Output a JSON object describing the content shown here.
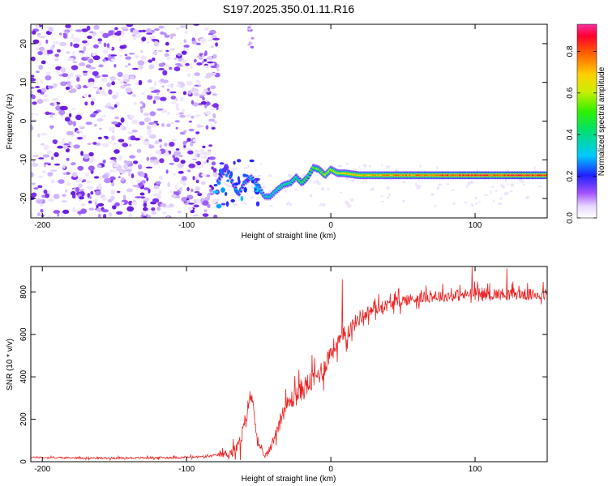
{
  "figure_title": "S197.2025.350.01.11.R16",
  "chart_data": [
    {
      "type": "heatmap",
      "name": "spectrogram",
      "title": "S197.2025.350.01.11.R16",
      "xlabel": "Height of straight line (km)",
      "ylabel": "Frequency (Hz)",
      "xlim": [
        -208,
        150
      ],
      "ylim": [
        -25,
        25
      ],
      "xticks": [
        -200,
        -100,
        0,
        100
      ],
      "yticks": [
        -20,
        -10,
        0,
        10,
        20
      ],
      "xtick_labels": [
        "-200",
        "-100",
        "0",
        "100"
      ],
      "ytick_labels": [
        "-20",
        "-10",
        "0",
        "10",
        "20"
      ],
      "colorbar": {
        "label": "Normalized spectral amplitude",
        "range": [
          0,
          0.93
        ],
        "ticks": [
          0.0,
          0.2,
          0.4,
          0.6,
          0.8
        ],
        "tick_labels": [
          "0.0",
          "0.2",
          "0.4",
          "0.6",
          "0.8"
        ]
      },
      "noise_region_x": [
        -208,
        -78
      ],
      "noise_region_y": [
        -25,
        25
      ],
      "signal_track": [
        {
          "x": -78,
          "y": -15.5
        },
        {
          "x": -72,
          "y": -12
        },
        {
          "x": -68,
          "y": -16
        },
        {
          "x": -64,
          "y": -19
        },
        {
          "x": -60,
          "y": -16
        },
        {
          "x": -55,
          "y": -14.5
        },
        {
          "x": -50,
          "y": -17
        },
        {
          "x": -46,
          "y": -19.5
        },
        {
          "x": -42,
          "y": -19.5
        },
        {
          "x": -38,
          "y": -18
        },
        {
          "x": -33,
          "y": -16.5
        },
        {
          "x": -28,
          "y": -16
        },
        {
          "x": -24,
          "y": -14.5
        },
        {
          "x": -20,
          "y": -16
        },
        {
          "x": -16,
          "y": -14.5
        },
        {
          "x": -12,
          "y": -12
        },
        {
          "x": -8,
          "y": -12.5
        },
        {
          "x": -4,
          "y": -14
        },
        {
          "x": 0,
          "y": -12.5
        },
        {
          "x": 5,
          "y": -13.5
        },
        {
          "x": 10,
          "y": -13.5
        },
        {
          "x": 20,
          "y": -14
        },
        {
          "x": 40,
          "y": -14
        },
        {
          "x": 60,
          "y": -14
        },
        {
          "x": 80,
          "y": -14
        },
        {
          "x": 100,
          "y": -14
        },
        {
          "x": 120,
          "y": -14
        },
        {
          "x": 150,
          "y": -14
        }
      ],
      "signal_strength": [
        {
          "x": -78,
          "v": 0.25
        },
        {
          "x": -60,
          "v": 0.3
        },
        {
          "x": -40,
          "v": 0.4
        },
        {
          "x": -20,
          "v": 0.5
        },
        {
          "x": 0,
          "v": 0.65
        },
        {
          "x": 20,
          "v": 0.75
        },
        {
          "x": 40,
          "v": 0.8
        },
        {
          "x": 60,
          "v": 0.85
        },
        {
          "x": 100,
          "v": 0.9
        },
        {
          "x": 150,
          "v": 0.9
        }
      ]
    },
    {
      "type": "line",
      "name": "snr",
      "xlabel": "Height of straight line (km)",
      "ylabel": "SNR (10 * v/v)",
      "xlim": [
        -208,
        150
      ],
      "ylim": [
        0,
        920
      ],
      "xticks": [
        -200,
        -100,
        0,
        100
      ],
      "yticks": [
        0,
        200,
        400,
        600,
        800
      ],
      "xtick_labels": [
        "-200",
        "-100",
        "0",
        "100"
      ],
      "ytick_labels": [
        "0",
        "200",
        "400",
        "600",
        "800"
      ],
      "color": "#ee2222",
      "series": [
        {
          "name": "SNR",
          "x": [
            -208,
            -180,
            -150,
            -120,
            -100,
            -85,
            -75,
            -68,
            -63,
            -59,
            -56,
            -54,
            -51,
            -48,
            -45,
            -42,
            -38,
            -34,
            -30,
            -26,
            -20,
            -15,
            -10,
            -5,
            0,
            5,
            10,
            15,
            20,
            25,
            30,
            35,
            40,
            50,
            60,
            70,
            80,
            90,
            100,
            110,
            120,
            130,
            140,
            150
          ],
          "y": [
            20,
            18,
            17,
            19,
            20,
            25,
            35,
            45,
            80,
            200,
            310,
            280,
            110,
            35,
            30,
            60,
            140,
            220,
            270,
            300,
            340,
            370,
            400,
            440,
            520,
            560,
            600,
            640,
            680,
            700,
            720,
            730,
            740,
            760,
            770,
            780,
            780,
            785,
            790,
            790,
            790,
            790,
            785,
            790
          ]
        }
      ],
      "noise_amplitude": [
        {
          "x": -208,
          "a": 10
        },
        {
          "x": -80,
          "a": 15
        },
        {
          "x": -60,
          "a": 120
        },
        {
          "x": -45,
          "a": 40
        },
        {
          "x": -35,
          "a": 100
        },
        {
          "x": -20,
          "a": 160
        },
        {
          "x": 0,
          "a": 140
        },
        {
          "x": 20,
          "a": 100
        },
        {
          "x": 40,
          "a": 80
        },
        {
          "x": 150,
          "a": 80
        }
      ],
      "spikes": [
        {
          "x": 8,
          "y": 860
        },
        {
          "x": 98,
          "y": 920
        },
        {
          "x": 122,
          "y": 912
        }
      ]
    }
  ]
}
